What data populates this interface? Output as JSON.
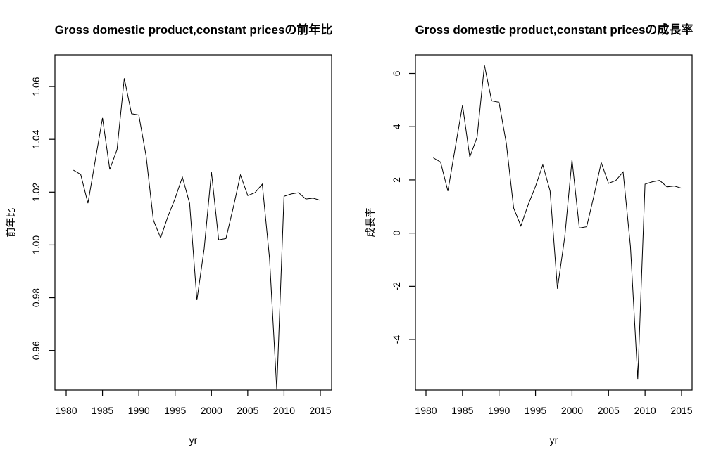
{
  "chart_data": [
    {
      "type": "line",
      "title": "Gross domestic product,constant pricesの前年比",
      "xlabel": "yr",
      "ylabel": "前年比",
      "xlim": [
        1980,
        2015
      ],
      "ylim": [
        0.945,
        1.072
      ],
      "x_ticks": [
        1980,
        1985,
        1990,
        1995,
        2000,
        2005,
        2010,
        2015
      ],
      "x_tick_labels": [
        "1980",
        "1985",
        "1990",
        "1995",
        "2000",
        "2005",
        "2010",
        "2015"
      ],
      "y_ticks": [
        0.96,
        0.98,
        1.0,
        1.02,
        1.04,
        1.06
      ],
      "y_tick_labels": [
        "0.96",
        "0.98",
        "1.00",
        "1.02",
        "1.04",
        "1.06"
      ],
      "grid": false,
      "legend": "none",
      "series": [
        {
          "name": "前年比",
          "x": [
            1981,
            1982,
            1983,
            1984,
            1985,
            1986,
            1987,
            1988,
            1989,
            1990,
            1991,
            1992,
            1993,
            1994,
            1995,
            1996,
            1997,
            1998,
            1999,
            2000,
            2001,
            2002,
            2003,
            2004,
            2005,
            2006,
            2007,
            2008,
            2009,
            2010,
            2011,
            2012,
            2013,
            2014,
            2015
          ],
          "values": [
            1.0283,
            1.0267,
            1.0158,
            1.032,
            1.0481,
            1.0286,
            1.0361,
            1.0631,
            1.0497,
            1.0492,
            1.0337,
            1.0094,
            1.0027,
            1.0107,
            1.0176,
            1.0257,
            1.0158,
            0.9791,
            0.9986,
            1.0276,
            1.0019,
            1.0024,
            1.014,
            1.0265,
            1.0187,
            1.0198,
            1.023,
            0.995,
            0.9452,
            1.0184,
            1.0193,
            1.0198,
            1.0174,
            1.0177,
            1.0169
          ]
        }
      ]
    },
    {
      "type": "line",
      "title": "Gross domestic product,constant pricesの成長率",
      "xlabel": "yr",
      "ylabel": "成長率",
      "xlim": [
        1980,
        2015
      ],
      "ylim": [
        -5.9,
        6.7
      ],
      "x_ticks": [
        1980,
        1985,
        1990,
        1995,
        2000,
        2005,
        2010,
        2015
      ],
      "x_tick_labels": [
        "1980",
        "1985",
        "1990",
        "1995",
        "2000",
        "2005",
        "2010",
        "2015"
      ],
      "y_ticks": [
        -4,
        -2,
        0,
        2,
        4,
        6
      ],
      "y_tick_labels": [
        "-4",
        "-2",
        "0",
        "2",
        "4",
        "6"
      ],
      "grid": false,
      "legend": "none",
      "series": [
        {
          "name": "成長率",
          "x": [
            1981,
            1982,
            1983,
            1984,
            1985,
            1986,
            1987,
            1988,
            1989,
            1990,
            1991,
            1992,
            1993,
            1994,
            1995,
            1996,
            1997,
            1998,
            1999,
            2000,
            2001,
            2002,
            2003,
            2004,
            2005,
            2006,
            2007,
            2008,
            2009,
            2010,
            2011,
            2012,
            2013,
            2014,
            2015
          ],
          "values": [
            2.83,
            2.67,
            1.58,
            3.2,
            4.81,
            2.86,
            3.61,
            6.31,
            4.97,
            4.92,
            3.37,
            0.94,
            0.27,
            1.07,
            1.76,
            2.57,
            1.58,
            -2.09,
            -0.14,
            2.76,
            0.19,
            0.24,
            1.4,
            2.65,
            1.87,
            1.98,
            2.3,
            -0.5,
            -5.48,
            1.84,
            1.93,
            1.98,
            1.74,
            1.77,
            1.69
          ]
        }
      ]
    }
  ]
}
